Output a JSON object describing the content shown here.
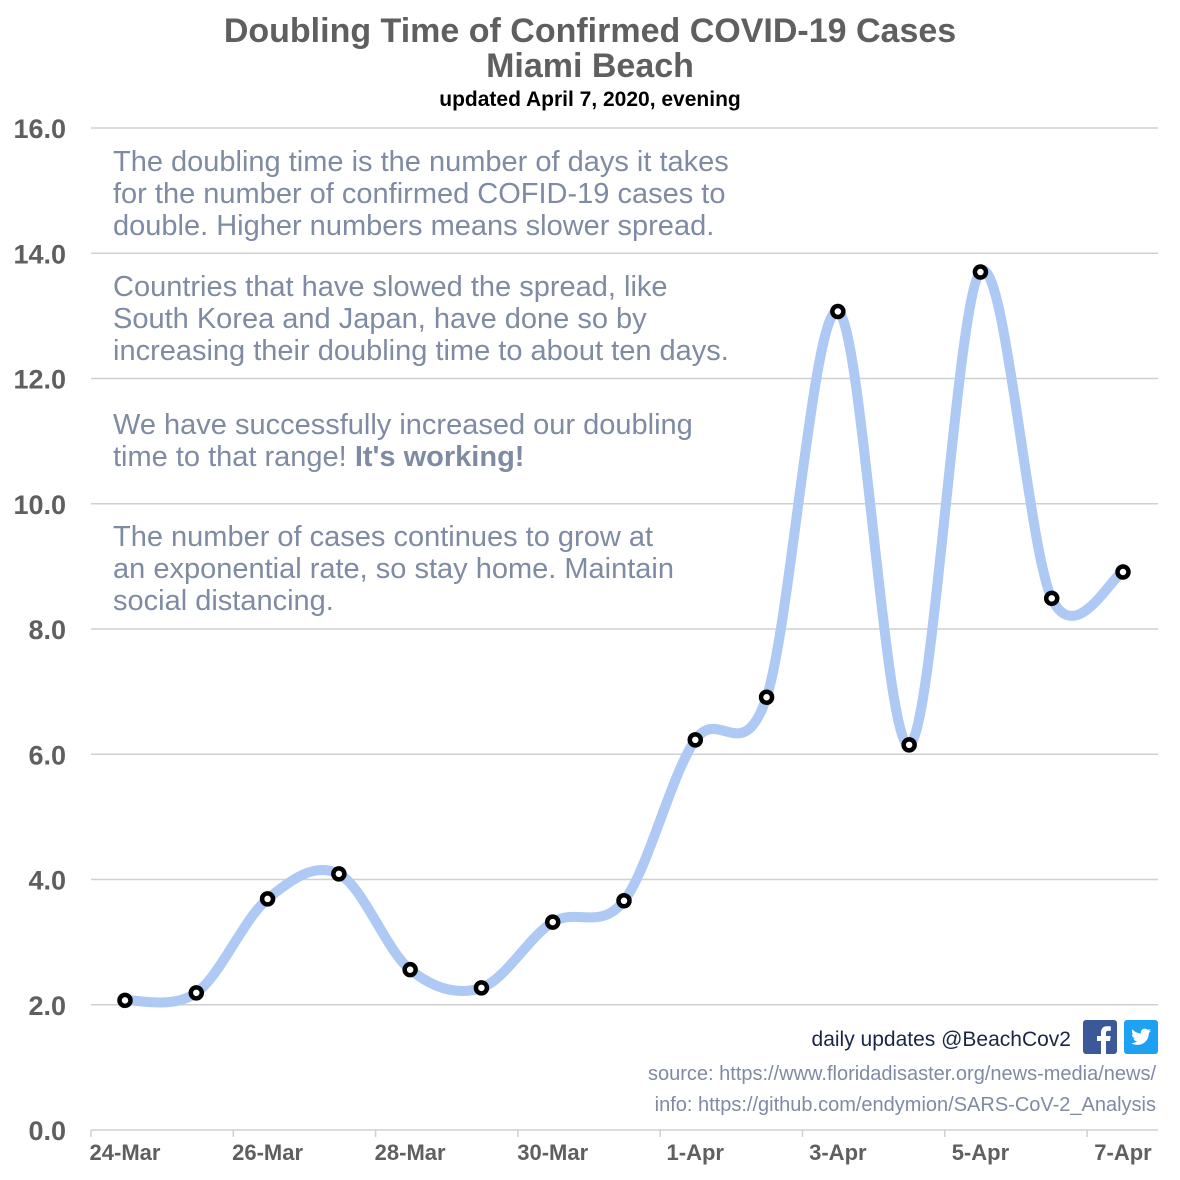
{
  "title_line1": "Doubling Time of Confirmed COVID-19 Cases",
  "title_line2": "Miami Beach",
  "subtitle": "updated April 7, 2020, evening",
  "annotations": {
    "p1": "The doubling time is the number of days it takes\nfor the number of confirmed COFID-19 cases to\ndouble.  Higher numbers means slower spread.",
    "p2": "Countries that have slowed the spread, like\nSouth Korea and Japan, have done so by\nincreasing their doubling time to about ten days.",
    "p3_plain": "We have successfully increased our doubling\ntime to that range!  ",
    "p3_bold": "It's working!",
    "p4": "The number of cases continues to grow at\nan exponential rate, so stay home.  Maintain\nsocial distancing."
  },
  "credits": {
    "updates": "daily updates @BeachCov2",
    "source": "source: https://www.floridadisaster.org/news-media/news/",
    "info": "info: https://github.com/endymion/SARS-CoV-2_Analysis",
    "icons": [
      "facebook-icon",
      "twitter-icon"
    ]
  },
  "colors": {
    "line": "#adc9f4",
    "marker": "#000000",
    "grid": "#d0d0d0",
    "axis_text": "#5f5f5f",
    "annotation": "#7f8ba3",
    "facebook": "#3b5998",
    "twitter": "#1da1f2"
  },
  "chart_data": {
    "type": "line",
    "title": "Doubling Time of Confirmed COVID-19 Cases Miami Beach",
    "subtitle": "updated April 7, 2020, evening",
    "xlabel": "",
    "ylabel": "",
    "x": [
      "24-Mar",
      "25-Mar",
      "26-Mar",
      "27-Mar",
      "28-Mar",
      "29-Mar",
      "30-Mar",
      "31-Mar",
      "1-Apr",
      "2-Apr",
      "3-Apr",
      "4-Apr",
      "5-Apr",
      "6-Apr",
      "7-Apr"
    ],
    "x_tick_labels": [
      "24-Mar",
      "26-Mar",
      "28-Mar",
      "30-Mar",
      "1-Apr",
      "3-Apr",
      "5-Apr",
      "7-Apr"
    ],
    "series": [
      {
        "values": [
          2.07,
          2.19,
          3.69,
          4.09,
          2.56,
          2.27,
          3.32,
          3.66,
          6.23,
          6.91,
          13.07,
          6.15,
          13.7,
          8.49,
          8.91
        ]
      }
    ],
    "yticks": [
      "0.0",
      "2.0",
      "4.0",
      "6.0",
      "8.0",
      "10.0",
      "12.0",
      "14.0",
      "16.0"
    ],
    "ylim": [
      0,
      16
    ],
    "grid": true,
    "smooth": true,
    "legend": "none"
  }
}
